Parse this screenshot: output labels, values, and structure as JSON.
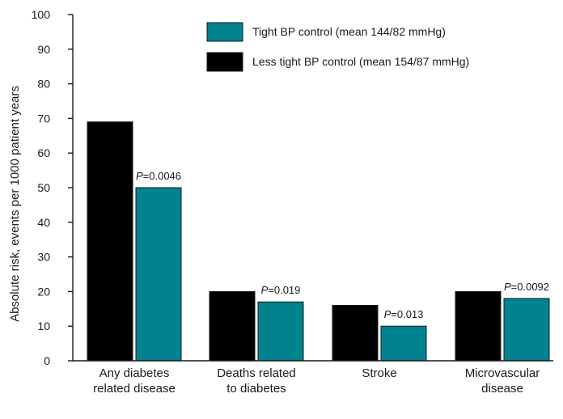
{
  "chart_data": {
    "type": "bar",
    "title": "",
    "xlabel": "",
    "ylabel": "Absolute risk, events per 1000 patient years",
    "ylim": [
      0,
      100
    ],
    "yticks": [
      0,
      10,
      20,
      30,
      40,
      50,
      60,
      70,
      80,
      90,
      100
    ],
    "grid": false,
    "legend_position": "top-right",
    "categories": [
      [
        "Any diabetes",
        "related disease"
      ],
      [
        "Deaths related",
        "to diabetes"
      ],
      [
        "Stroke"
      ],
      [
        "Microvascular",
        "disease"
      ]
    ],
    "series": [
      {
        "name": "Less tight BP control (mean 154/87 mmHg)",
        "color": "#000000",
        "values": [
          69,
          20,
          16,
          20
        ]
      },
      {
        "name": "Tight BP control (mean 144/82 mmHg)",
        "color": "#00838f",
        "values": [
          50,
          17,
          10,
          18
        ]
      }
    ],
    "legend_order": [
      1,
      0
    ],
    "annotations": [
      {
        "p_symbol": "P",
        "p_value": "=0.0046"
      },
      {
        "p_symbol": "P",
        "p_value": "=0.019"
      },
      {
        "p_symbol": "P",
        "p_value": "=0.013"
      },
      {
        "p_symbol": "P",
        "p_value": "=0.0092"
      }
    ]
  }
}
